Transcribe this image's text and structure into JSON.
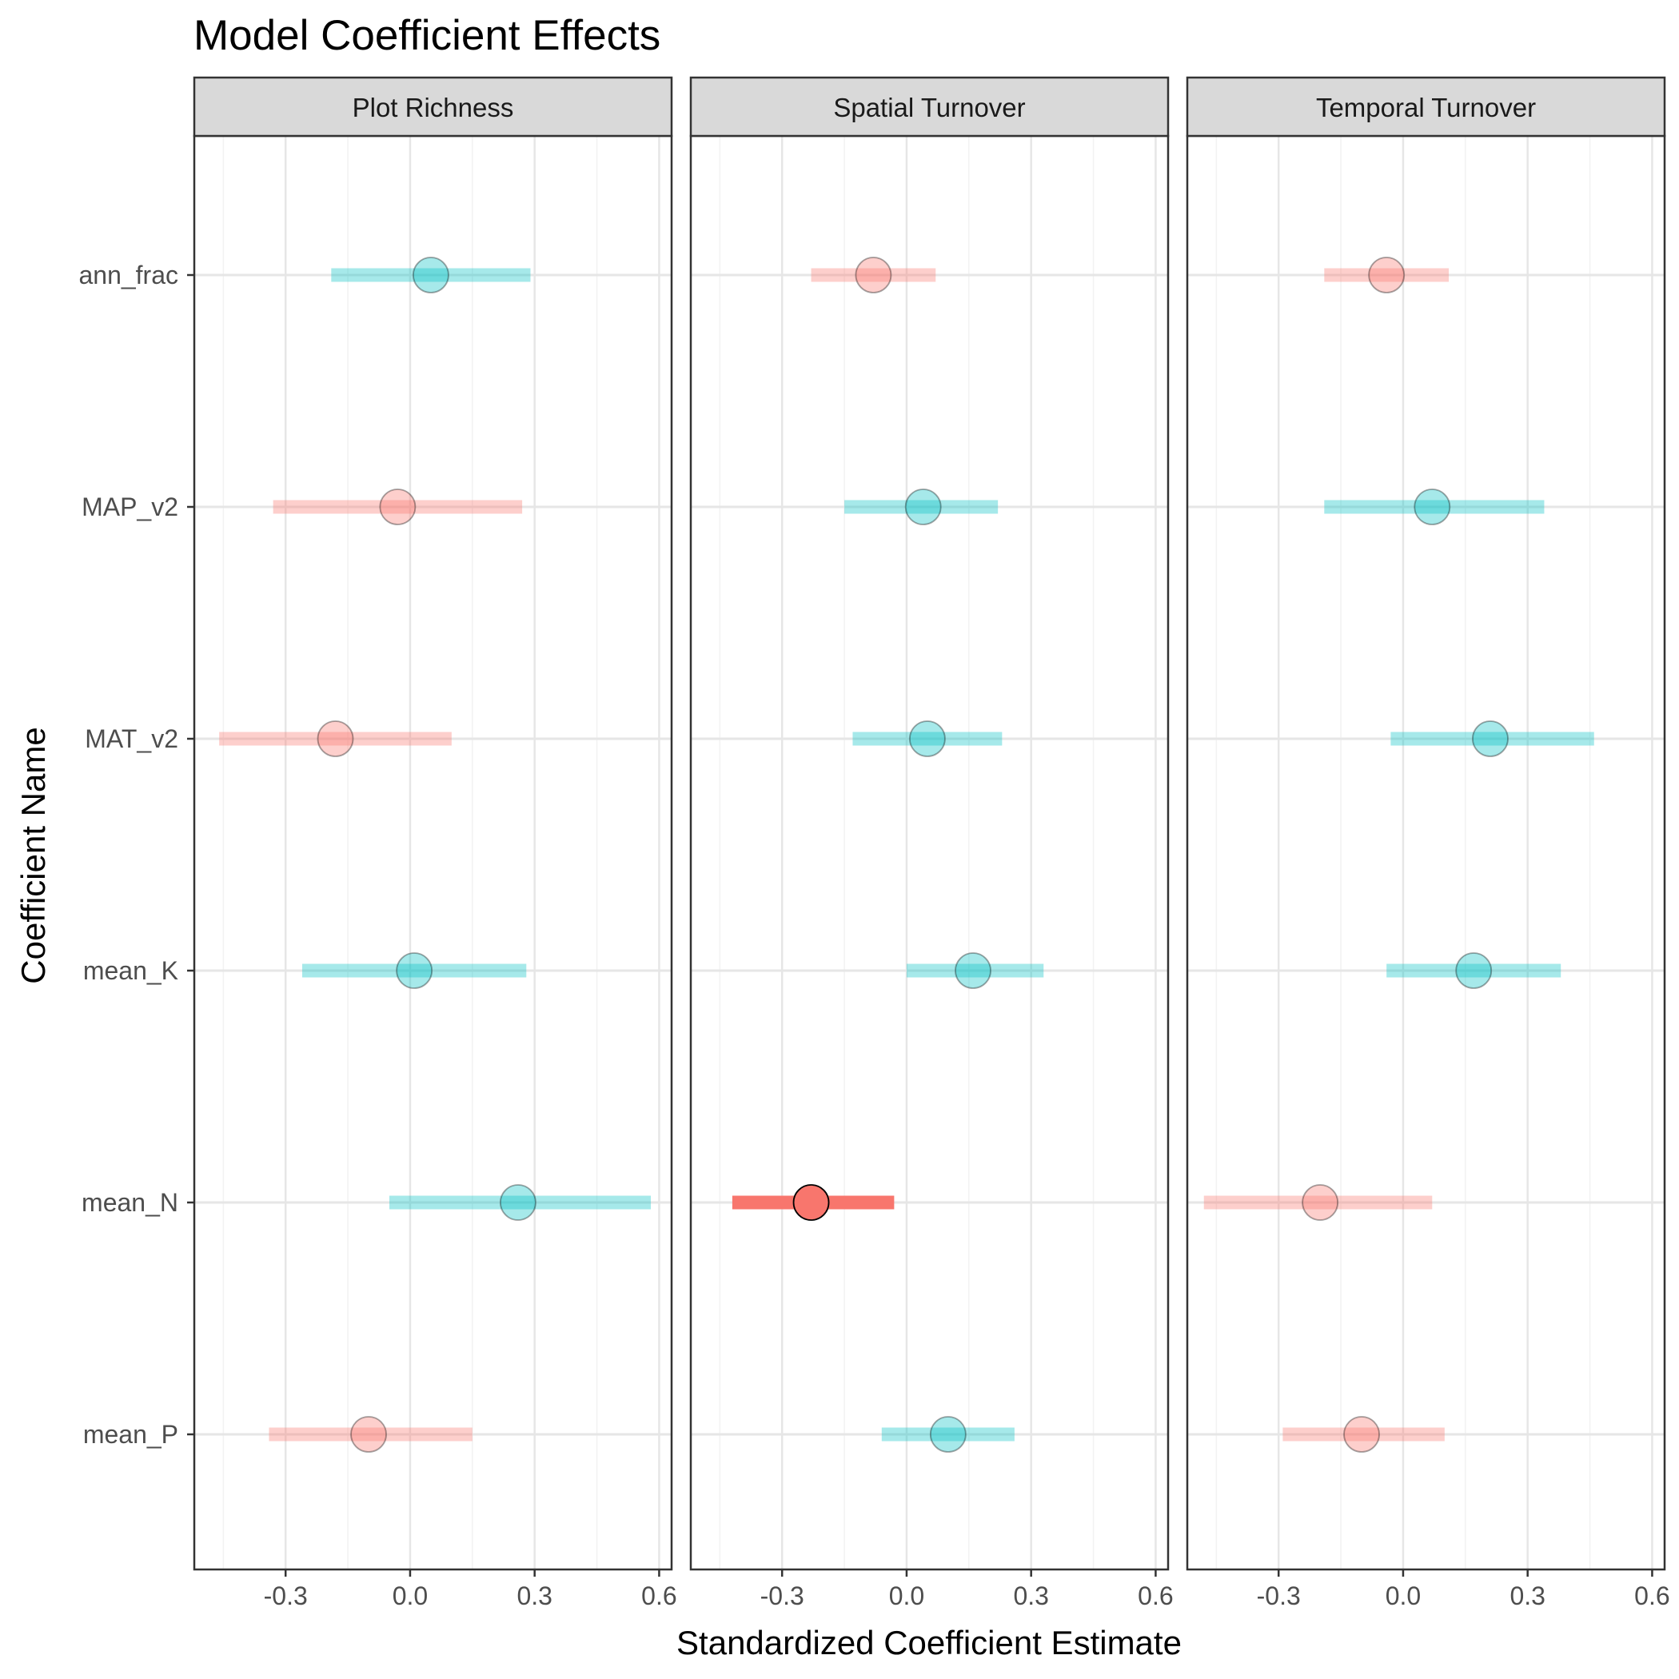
{
  "chart_data": {
    "type": "dot-and-whisker",
    "title": "Model Coefficient Effects",
    "xlabel": "Standardized Coefficient Estimate",
    "ylabel": "Coefficient Name",
    "x_ticks": [
      -0.3,
      0.0,
      0.3,
      0.6
    ],
    "x_tick_labels": [
      "-0.3",
      "0.0",
      "0.3",
      "0.6"
    ],
    "xlim": [
      -0.52,
      0.63
    ],
    "coefficients": [
      "ann_frac",
      "MAP_v2",
      "MAT_v2",
      "mean_K",
      "mean_N",
      "mean_P"
    ],
    "colors": {
      "positive": "#00BFC4",
      "negative": "#F8766D",
      "grid_major": "#e6e6e6",
      "grid_minor": "#f2f2f2",
      "strip_fill": "#d9d9d9",
      "panel_border": "#333333"
    },
    "panels": [
      {
        "name": "Plot Richness",
        "estimates": [
          {
            "coef": "ann_frac",
            "estimate": 0.05,
            "low": -0.19,
            "high": 0.29,
            "sign": "positive",
            "significant": false
          },
          {
            "coef": "MAP_v2",
            "estimate": -0.03,
            "low": -0.33,
            "high": 0.27,
            "sign": "negative",
            "significant": false
          },
          {
            "coef": "MAT_v2",
            "estimate": -0.18,
            "low": -0.46,
            "high": 0.1,
            "sign": "negative",
            "significant": false
          },
          {
            "coef": "mean_K",
            "estimate": 0.01,
            "low": -0.26,
            "high": 0.28,
            "sign": "positive",
            "significant": false
          },
          {
            "coef": "mean_N",
            "estimate": 0.26,
            "low": -0.05,
            "high": 0.58,
            "sign": "positive",
            "significant": false
          },
          {
            "coef": "mean_P",
            "estimate": -0.1,
            "low": -0.34,
            "high": 0.15,
            "sign": "negative",
            "significant": false
          }
        ]
      },
      {
        "name": "Spatial Turnover",
        "estimates": [
          {
            "coef": "ann_frac",
            "estimate": -0.08,
            "low": -0.23,
            "high": 0.07,
            "sign": "negative",
            "significant": false
          },
          {
            "coef": "MAP_v2",
            "estimate": 0.04,
            "low": -0.15,
            "high": 0.22,
            "sign": "positive",
            "significant": false
          },
          {
            "coef": "MAT_v2",
            "estimate": 0.05,
            "low": -0.13,
            "high": 0.23,
            "sign": "positive",
            "significant": false
          },
          {
            "coef": "mean_K",
            "estimate": 0.16,
            "low": 0.0,
            "high": 0.33,
            "sign": "positive",
            "significant": false
          },
          {
            "coef": "mean_N",
            "estimate": -0.23,
            "low": -0.42,
            "high": -0.03,
            "sign": "negative",
            "significant": true
          },
          {
            "coef": "mean_P",
            "estimate": 0.1,
            "low": -0.06,
            "high": 0.26,
            "sign": "positive",
            "significant": false
          }
        ]
      },
      {
        "name": "Temporal Turnover",
        "estimates": [
          {
            "coef": "ann_frac",
            "estimate": -0.04,
            "low": -0.19,
            "high": 0.11,
            "sign": "negative",
            "significant": false
          },
          {
            "coef": "MAP_v2",
            "estimate": 0.07,
            "low": -0.19,
            "high": 0.34,
            "sign": "positive",
            "significant": false
          },
          {
            "coef": "MAT_v2",
            "estimate": 0.21,
            "low": -0.03,
            "high": 0.46,
            "sign": "positive",
            "significant": false
          },
          {
            "coef": "mean_K",
            "estimate": 0.17,
            "low": -0.04,
            "high": 0.38,
            "sign": "positive",
            "significant": false
          },
          {
            "coef": "mean_N",
            "estimate": -0.2,
            "low": -0.48,
            "high": 0.07,
            "sign": "negative",
            "significant": false
          },
          {
            "coef": "mean_P",
            "estimate": -0.1,
            "low": -0.29,
            "high": 0.1,
            "sign": "negative",
            "significant": false
          }
        ]
      }
    ]
  }
}
